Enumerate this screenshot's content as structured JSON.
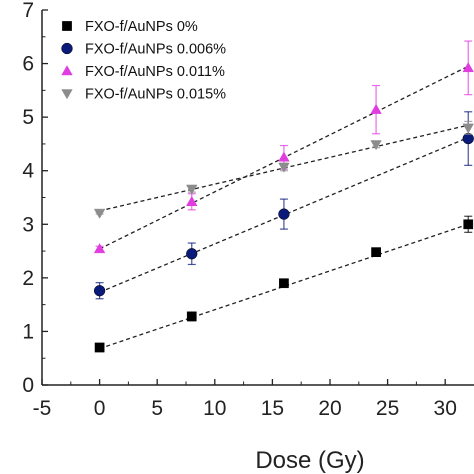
{
  "chart_data": {
    "type": "scatter",
    "title": "",
    "xlabel": "Dose (Gy)",
    "ylabel": "",
    "xlim": [
      -5,
      32.5
    ],
    "ylim": [
      0,
      7
    ],
    "xticks": [
      -5,
      0,
      5,
      10,
      15,
      20,
      25,
      30
    ],
    "xtick_labels": [
      "-5",
      "0",
      "5",
      "10",
      "15",
      "20",
      "25",
      "30"
    ],
    "yticks": [
      0,
      1,
      2,
      3,
      4,
      5,
      6,
      7
    ],
    "ytick_labels": [
      "0",
      "1",
      "2",
      "3",
      "4",
      "5",
      "6",
      "7"
    ],
    "grid": false,
    "legend_position": "top-left",
    "series": [
      {
        "name": "FXO-f/AuNPs 0%",
        "marker": "square",
        "color": "#000000",
        "x": [
          0,
          8,
          16,
          24,
          32
        ],
        "y": [
          0.7,
          1.28,
          1.9,
          2.48,
          3.0
        ],
        "err": [
          0.03,
          0.08,
          0.05,
          0.05,
          0.15
        ],
        "fit": [
          [
            0,
            0.68
          ],
          [
            32,
            3.0
          ]
        ]
      },
      {
        "name": "FXO-f/AuNPs 0.006%",
        "marker": "circle",
        "color": "#0a1a7a",
        "x": [
          0,
          8,
          16,
          32
        ],
        "y": [
          1.76,
          2.45,
          3.19,
          4.6
        ],
        "err": [
          0.15,
          0.2,
          0.28,
          0.5
        ],
        "fit": [
          [
            0,
            1.73
          ],
          [
            32,
            4.62
          ]
        ]
      },
      {
        "name": "FXO-f/AuNPs 0.011%",
        "marker": "triangle-up",
        "color": "#e03ce0",
        "x": [
          0,
          8,
          16,
          24,
          32
        ],
        "y": [
          2.54,
          3.42,
          4.25,
          5.14,
          5.92
        ],
        "err": [
          0.05,
          0.15,
          0.22,
          0.45,
          0.5
        ],
        "fit": [
          [
            0,
            2.54
          ],
          [
            32,
            5.95
          ]
        ]
      },
      {
        "name": "FXO-f/AuNPs 0.015%",
        "marker": "triangle-down",
        "color": "#8c8c8c",
        "x": [
          0,
          8,
          16,
          24,
          32
        ],
        "y": [
          3.21,
          3.66,
          4.07,
          4.49,
          4.8
        ],
        "err": [
          0.02,
          0.06,
          0.07,
          0.06,
          0.12
        ],
        "fit": [
          [
            0,
            3.25
          ],
          [
            32,
            4.85
          ]
        ]
      }
    ]
  }
}
